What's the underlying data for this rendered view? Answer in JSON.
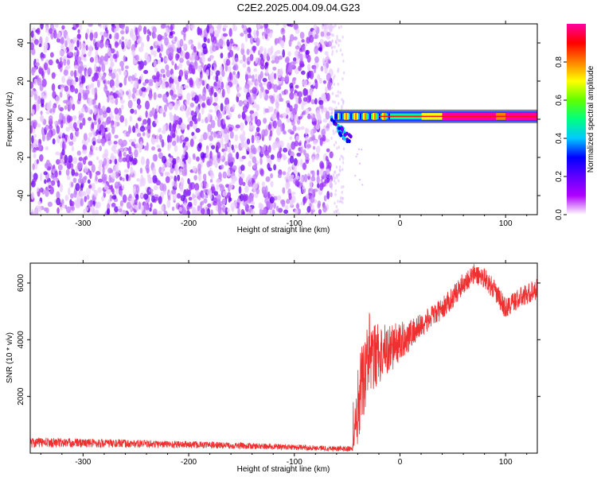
{
  "title": "C2E2.2025.004.09.04.G23",
  "chart_data": [
    {
      "type": "heatmap",
      "panel": "spectrogram",
      "xlabel": "Height of straight line (km)",
      "ylabel": "Frequency (Hz)",
      "xlim": [
        -350,
        130
      ],
      "ylim": [
        -50,
        50
      ],
      "xticks": [
        -300,
        -200,
        -100,
        0,
        100
      ],
      "yticks": [
        -40,
        -20,
        0,
        20,
        40
      ],
      "grid": false,
      "colorbar": {
        "label": "Normalized spectral amplitude",
        "range": [
          0,
          1
        ],
        "ticks": [
          "0.0",
          "0.2",
          "0.4",
          "0.6",
          "0.8"
        ],
        "colors": [
          "#ffffff",
          "#b000ff",
          "#6000ff",
          "#0000ff",
          "#00c8ff",
          "#00ff80",
          "#60ff00",
          "#ffff00",
          "#ff8000",
          "#ff0000",
          "#ff00a0"
        ]
      },
      "noise_region_x": [
        -350,
        -65
      ],
      "signal": {
        "x_range": [
          -70,
          130
        ],
        "frequency_center": 1.5,
        "frequency_width": 2,
        "peak_amplitude": 1.0,
        "deviation_near_start": "frequency curves down to about -12 Hz between -65 and -45 km"
      }
    },
    {
      "type": "line",
      "panel": "snr",
      "xlabel": "Height of straight line (km)",
      "ylabel": "SNR (10 * v/v)",
      "xlim": [
        -350,
        130
      ],
      "ylim": [
        0,
        6700
      ],
      "xticks": [
        -300,
        -200,
        -100,
        0,
        100
      ],
      "yticks": [
        2000,
        4000,
        6000
      ],
      "grid": false,
      "series": [
        {
          "color": "#f03030",
          "envelope_x": [
            -350,
            -300,
            -250,
            -200,
            -150,
            -100,
            -60,
            -45,
            -40,
            -35,
            -30,
            -20,
            -10,
            0,
            10,
            20,
            30,
            40,
            50,
            60,
            70,
            80,
            90,
            100,
            110,
            120,
            130
          ],
          "envelope_y": [
            380,
            360,
            330,
            300,
            260,
            210,
            160,
            150,
            1600,
            2600,
            3200,
            3500,
            3700,
            3900,
            4200,
            4500,
            4800,
            5100,
            5500,
            6000,
            6300,
            6200,
            5700,
            5100,
            5400,
            5600,
            5800
          ],
          "noise_amplitude": [
            180,
            160,
            140,
            130,
            110,
            100,
            90,
            100,
            1300,
            1400,
            1300,
            1100,
            900,
            700,
            550,
            450,
            400,
            380,
            380,
            380,
            380,
            360,
            380,
            380,
            380,
            380,
            380
          ]
        }
      ]
    }
  ]
}
